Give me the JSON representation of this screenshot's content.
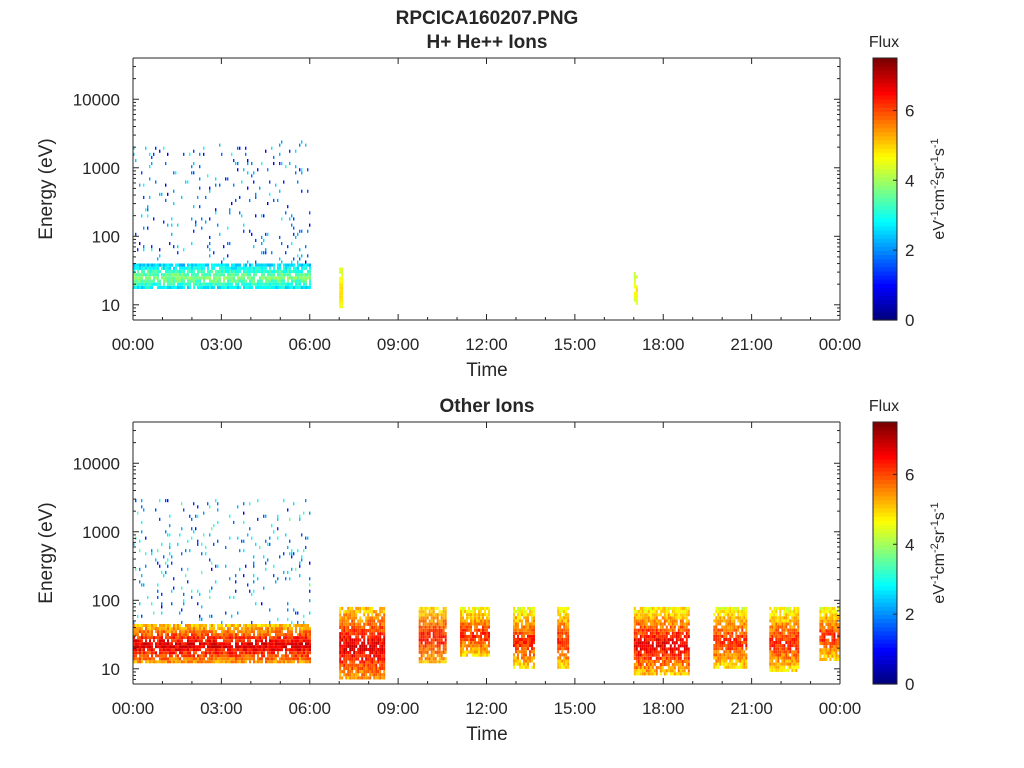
{
  "figure_title": "RPCICA160207.PNG",
  "chart_data": [
    {
      "type": "heatmap",
      "title": "H+ He++ Ions",
      "xlabel": "Time",
      "ylabel": "Energy (eV)",
      "x_unit": "hours",
      "xlim": [
        0,
        24
      ],
      "xticks": [
        0,
        3,
        6,
        9,
        12,
        15,
        18,
        21,
        24
      ],
      "xticklabels": [
        "00:00",
        "03:00",
        "06:00",
        "09:00",
        "12:00",
        "15:00",
        "18:00",
        "21:00",
        "00:00"
      ],
      "y_scale": "log",
      "ylim": [
        6,
        40000
      ],
      "yticks": [
        10,
        100,
        1000,
        10000
      ],
      "yticklabels": [
        "10",
        "100",
        "1000",
        "10000"
      ],
      "colorbar": {
        "label": "Flux",
        "unit_label": "eV-1cm-2sr-1s-1",
        "range": [
          0,
          7.5
        ],
        "ticks": [
          0,
          2,
          4,
          6
        ],
        "colormap": "jet"
      },
      "regions": [
        {
          "x": [
            0,
            6
          ],
          "energy": [
            17,
            40
          ],
          "flux": [
            1.5,
            4
          ],
          "density": "dense"
        },
        {
          "x": [
            0,
            6
          ],
          "energy": [
            40,
            2500
          ],
          "flux": [
            0.5,
            3
          ],
          "density": "sparse"
        },
        {
          "x": [
            7,
            7.1
          ],
          "energy": [
            8,
            35
          ],
          "flux": [
            4,
            5
          ],
          "density": "dense"
        },
        {
          "x": [
            17,
            17.1
          ],
          "energy": [
            10,
            30
          ],
          "flux": [
            3.5,
            5
          ],
          "density": "dense"
        }
      ]
    },
    {
      "type": "heatmap",
      "title": "Other Ions",
      "xlabel": "Time",
      "ylabel": "Energy (eV)",
      "x_unit": "hours",
      "xlim": [
        0,
        24
      ],
      "xticks": [
        0,
        3,
        6,
        9,
        12,
        15,
        18,
        21,
        24
      ],
      "xticklabels": [
        "00:00",
        "03:00",
        "06:00",
        "09:00",
        "12:00",
        "15:00",
        "18:00",
        "21:00",
        "00:00"
      ],
      "y_scale": "log",
      "ylim": [
        6,
        40000
      ],
      "yticks": [
        10,
        100,
        1000,
        10000
      ],
      "yticklabels": [
        "10",
        "100",
        "1000",
        "10000"
      ],
      "colorbar": {
        "label": "Flux",
        "unit_label": "eV-1cm-2sr-1s-1",
        "range": [
          0,
          7.5
        ],
        "ticks": [
          0,
          2,
          4,
          6
        ],
        "colormap": "jet"
      },
      "regions": [
        {
          "x": [
            0,
            6
          ],
          "energy": [
            12,
            45
          ],
          "flux": [
            4,
            7
          ],
          "density": "dense"
        },
        {
          "x": [
            0,
            6
          ],
          "energy": [
            45,
            3000
          ],
          "flux": [
            0.5,
            3.5
          ],
          "density": "sparse"
        },
        {
          "x": [
            7,
            8.5
          ],
          "energy": [
            7,
            80
          ],
          "flux": [
            4,
            7
          ],
          "density": "dense"
        },
        {
          "x": [
            9.7,
            10.6
          ],
          "energy": [
            12,
            80
          ],
          "flux": [
            4,
            6.5
          ],
          "density": "dense"
        },
        {
          "x": [
            11.1,
            12.1
          ],
          "energy": [
            15,
            80
          ],
          "flux": [
            3.5,
            6.5
          ],
          "density": "dense"
        },
        {
          "x": [
            12.9,
            13.6
          ],
          "energy": [
            10,
            80
          ],
          "flux": [
            3.5,
            6.5
          ],
          "density": "dense"
        },
        {
          "x": [
            14.4,
            14.8
          ],
          "energy": [
            10,
            80
          ],
          "flux": [
            3.5,
            6.5
          ],
          "density": "dense"
        },
        {
          "x": [
            17,
            18.9
          ],
          "energy": [
            8,
            80
          ],
          "flux": [
            3.5,
            7
          ],
          "density": "dense"
        },
        {
          "x": [
            19.7,
            20.8
          ],
          "energy": [
            10,
            80
          ],
          "flux": [
            3.5,
            6.5
          ],
          "density": "dense"
        },
        {
          "x": [
            21.6,
            22.6
          ],
          "energy": [
            9,
            80
          ],
          "flux": [
            3.5,
            6.5
          ],
          "density": "dense"
        },
        {
          "x": [
            23.3,
            23.95
          ],
          "energy": [
            13,
            80
          ],
          "flux": [
            3.5,
            6.5
          ],
          "density": "dense"
        }
      ]
    }
  ]
}
